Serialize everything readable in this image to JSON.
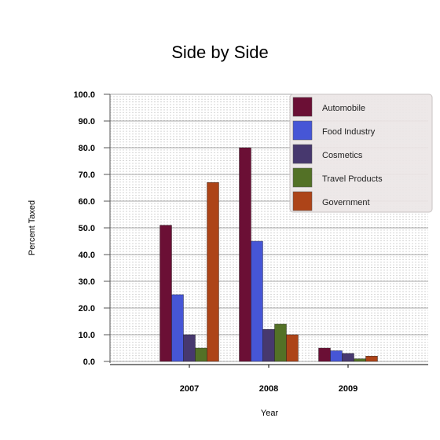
{
  "chart_data": {
    "type": "bar",
    "title": "Side by Side",
    "xlabel": "Year",
    "ylabel": "Percent Taxed",
    "categories": [
      "2007",
      "2008",
      "2009"
    ],
    "y_ticks": [
      "0.0",
      "10.0",
      "20.0",
      "30.0",
      "40.0",
      "50.0",
      "60.0",
      "70.0",
      "80.0",
      "90.0",
      "100.0"
    ],
    "ylim": [
      0,
      100
    ],
    "grid": true,
    "legend_position": "top-right",
    "series": [
      {
        "name": "Automobile",
        "color": "#6b0f35",
        "values": [
          51,
          80,
          5
        ]
      },
      {
        "name": "Food Industry",
        "color": "#4656d6",
        "values": [
          25,
          45,
          4
        ]
      },
      {
        "name": "Cosmetics",
        "color": "#47386e",
        "values": [
          10,
          12,
          3
        ]
      },
      {
        "name": "Travel Products",
        "color": "#537126",
        "values": [
          5,
          14,
          1
        ]
      },
      {
        "name": "Government",
        "color": "#ad4418",
        "values": [
          67,
          10,
          2
        ]
      }
    ]
  }
}
